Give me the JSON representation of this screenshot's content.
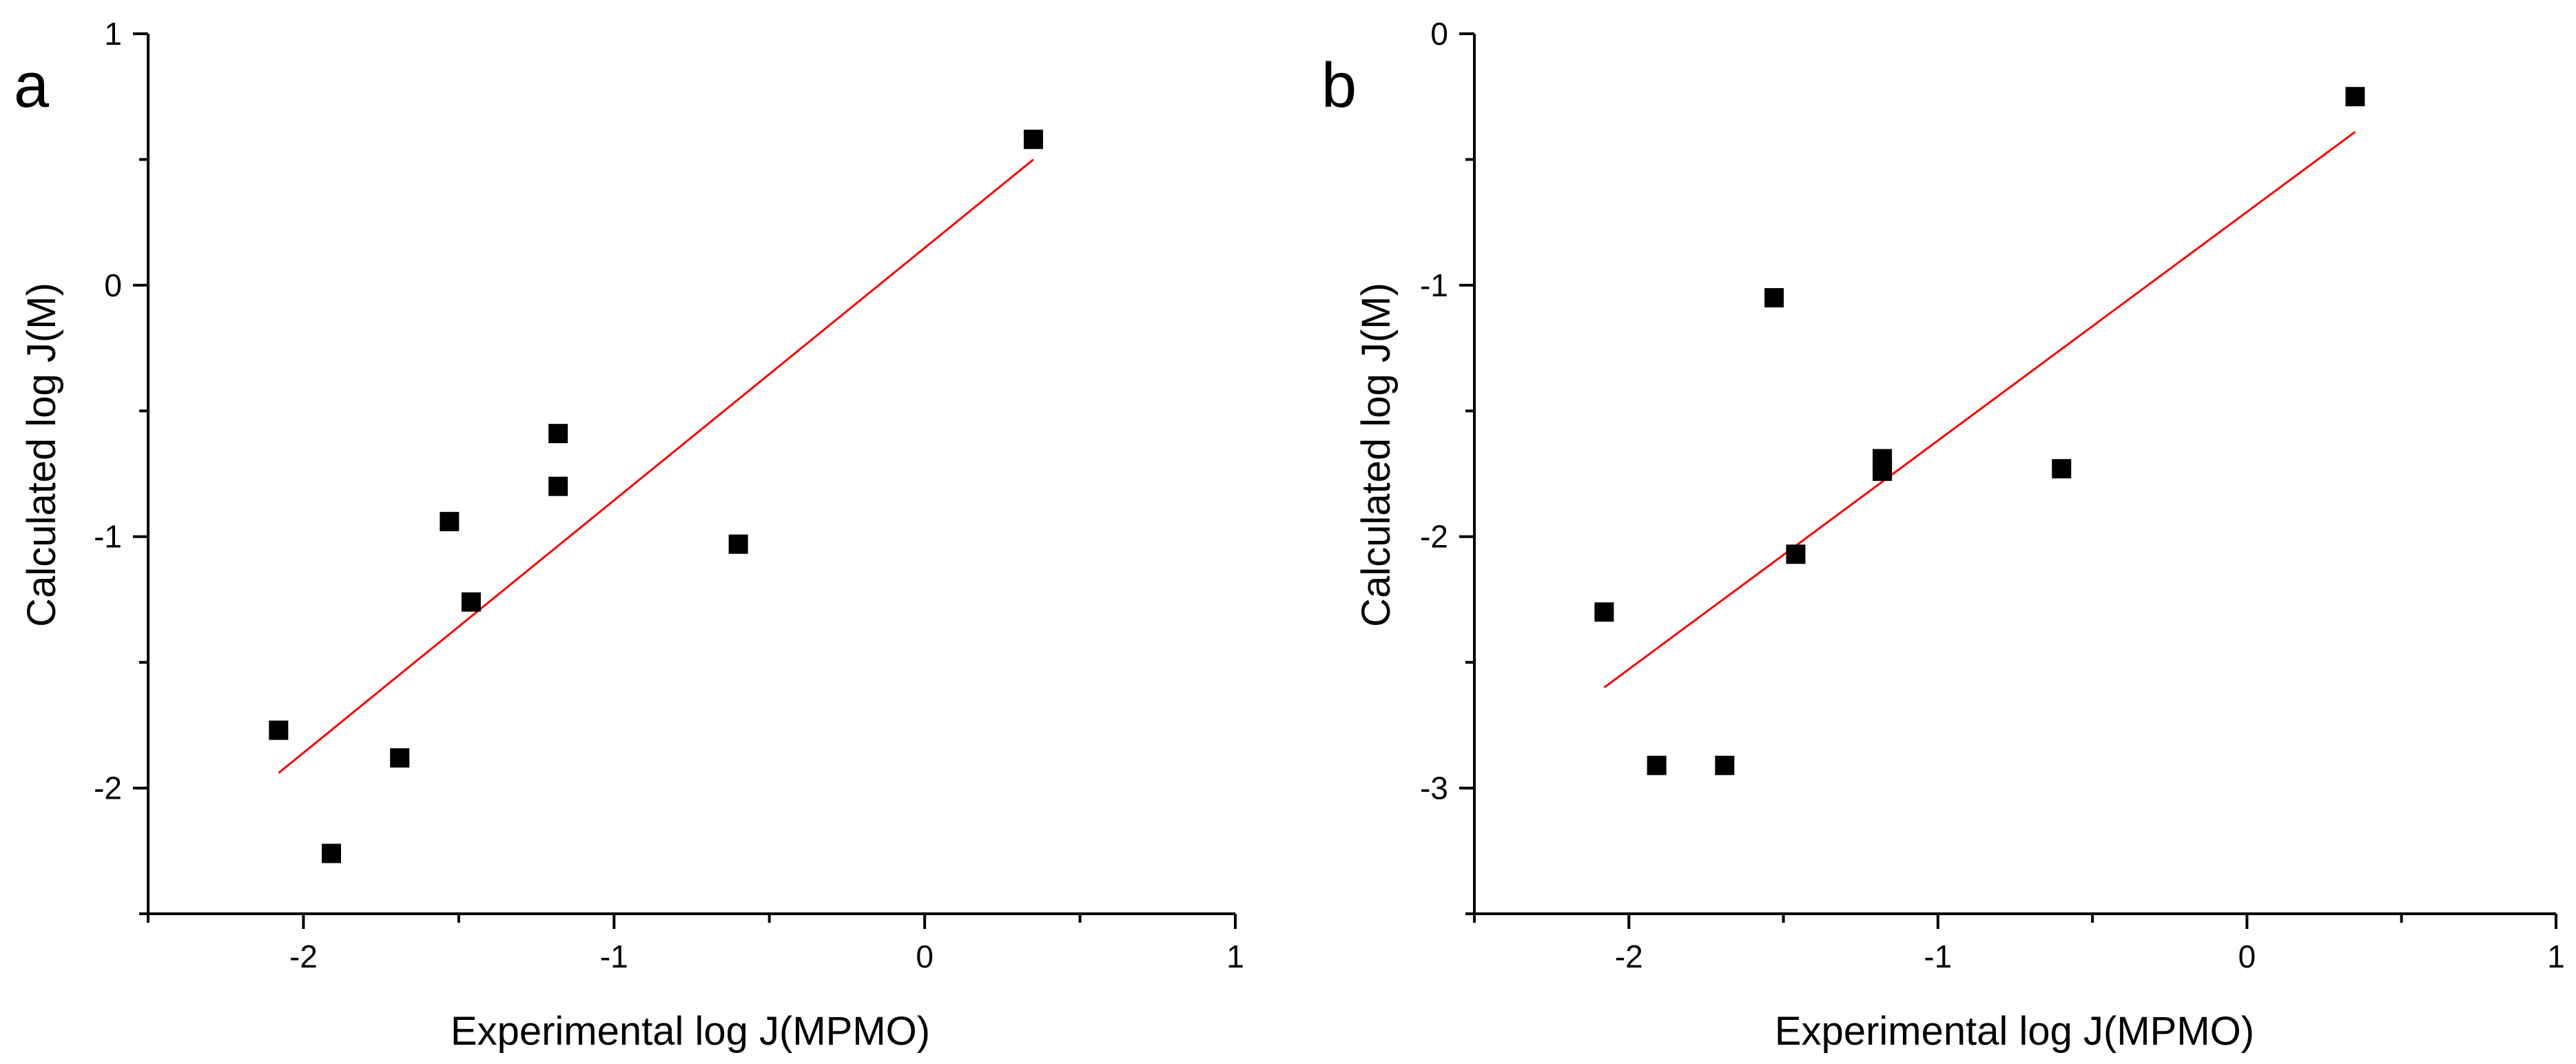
{
  "chart_data": [
    {
      "type": "scatter",
      "panel_label": "a",
      "xlabel": "Experimental log J(MPMO)",
      "ylabel": "Calculated log J(M)",
      "xlim": [
        -2.5,
        1
      ],
      "ylim": [
        -2.5,
        1
      ],
      "x_ticks": [
        -2,
        -1,
        0,
        1
      ],
      "y_ticks": [
        -2,
        -1,
        0,
        1
      ],
      "x_tick_labels": [
        "-2",
        "-1",
        "0",
        "1"
      ],
      "y_tick_labels": [
        "-2",
        "-1",
        "0",
        "1"
      ],
      "grid": false,
      "series": [
        {
          "name": "data",
          "marker": "square",
          "color": "#000000",
          "points": [
            [
              -2.08,
              -1.77
            ],
            [
              -1.91,
              -2.26
            ],
            [
              -1.69,
              -1.88
            ],
            [
              -1.53,
              -0.94
            ],
            [
              -1.46,
              -1.26
            ],
            [
              -1.18,
              -0.59
            ],
            [
              -1.18,
              -0.8
            ],
            [
              -0.6,
              -1.03
            ],
            [
              0.35,
              0.58
            ]
          ]
        },
        {
          "name": "linear fit",
          "style": "line",
          "color": "#ff0000",
          "points": [
            [
              -2.08,
              -1.94
            ],
            [
              0.35,
              0.5
            ]
          ]
        }
      ]
    },
    {
      "type": "scatter",
      "panel_label": "b",
      "xlabel": "Experimental log J(MPMO)",
      "ylabel": "Calculated log J(M)",
      "xlim": [
        -2.5,
        1
      ],
      "ylim": [
        -3.5,
        0
      ],
      "x_ticks": [
        -2,
        -1,
        0,
        1
      ],
      "y_ticks": [
        -3,
        -2,
        -1,
        0
      ],
      "x_tick_labels": [
        "-2",
        "-1",
        "0",
        "1"
      ],
      "y_tick_labels": [
        "-3",
        "-2",
        "-1",
        "0"
      ],
      "grid": false,
      "series": [
        {
          "name": "data",
          "marker": "square",
          "color": "#000000",
          "points": [
            [
              -2.08,
              -2.3
            ],
            [
              -1.91,
              -2.91
            ],
            [
              -1.69,
              -2.91
            ],
            [
              -1.53,
              -1.05
            ],
            [
              -1.46,
              -2.07
            ],
            [
              -1.18,
              -1.69
            ],
            [
              -1.18,
              -1.74
            ],
            [
              -0.6,
              -1.73
            ],
            [
              0.35,
              -0.25
            ]
          ]
        },
        {
          "name": "linear fit",
          "style": "line",
          "color": "#ff0000",
          "points": [
            [
              -2.08,
              -2.6
            ],
            [
              0.35,
              -0.39
            ]
          ]
        }
      ]
    }
  ]
}
